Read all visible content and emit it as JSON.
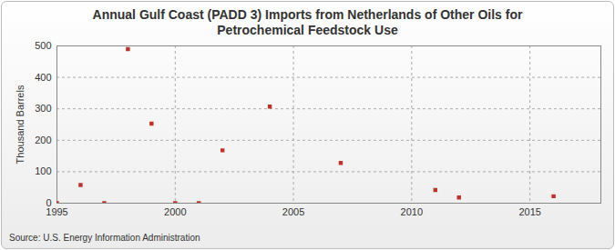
{
  "chart_data": {
    "type": "scatter",
    "title": "Annual Gulf Coast (PADD 3) Imports from Netherlands of Other Oils for Petrochemical Feedstock Use",
    "y_label": "Thousand Barrels",
    "source": "Source: U.S. Energy Information Administration",
    "x": [
      1995,
      1996,
      1997,
      1998,
      1999,
      2000,
      2001,
      2002,
      2004,
      2007,
      2011,
      2012,
      2016
    ],
    "values": [
      0,
      58,
      0,
      490,
      253,
      0,
      0,
      168,
      307,
      128,
      42,
      18,
      22
    ],
    "color": "#c0312a",
    "marker": "square",
    "xlim": [
      1995,
      2018
    ],
    "xticks": [
      1995,
      2000,
      2005,
      2010,
      2015
    ],
    "ylim": [
      0,
      500
    ],
    "yticks": [
      0,
      100,
      200,
      300,
      400,
      500
    ],
    "grid": true
  }
}
